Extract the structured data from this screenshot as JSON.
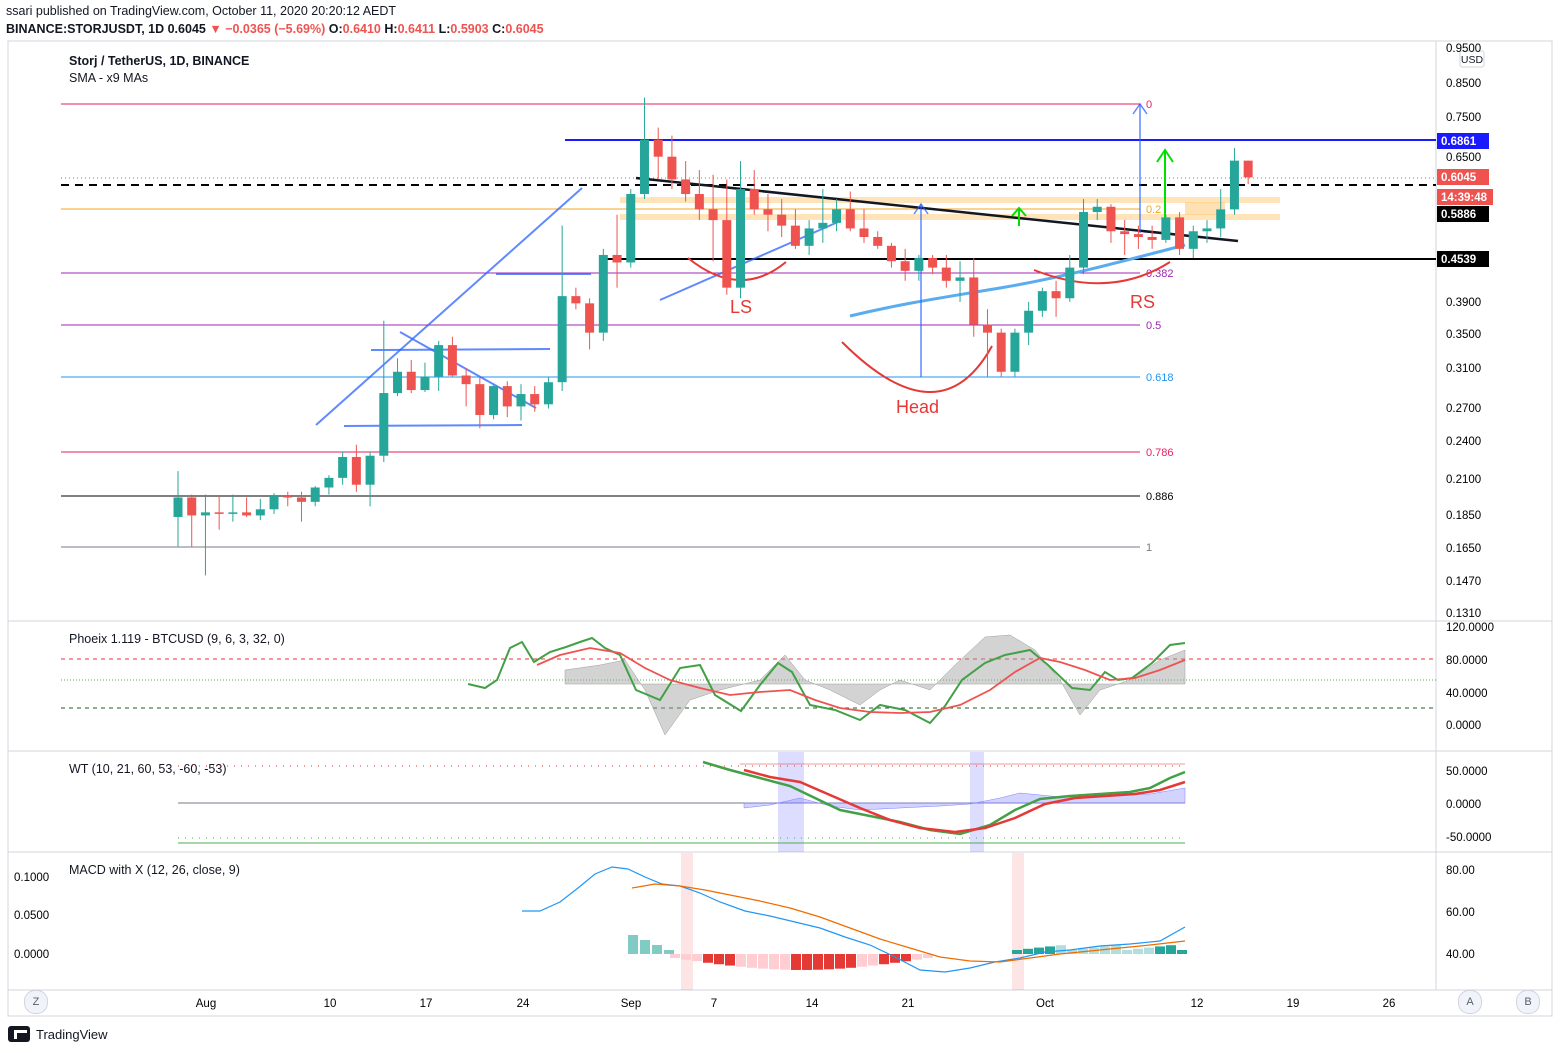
{
  "header": {
    "publisher": "ssari published on TradingView.com, October 11, 2020 20:20:12 AEDT",
    "symbol": "BINANCE:STORJUSDT, 1D",
    "last": "0.6045",
    "arrow": "▼",
    "change": "−0.0365 (−5.69%)",
    "o_label": "O:",
    "o": "0.6410",
    "h_label": "H:",
    "h": "0.6411",
    "l_label": "L:",
    "l": "0.5903",
    "c_label": "C:",
    "c": "0.6045"
  },
  "legend": {
    "main_title": "Storj / TetherUS, 1D, BINANCE",
    "main_sub": "SMA - x9 MAs",
    "pane2_title": "Phoeix 1.119 - BTCUSD (9, 6, 3, 32, 0)",
    "pane3_title": "WT (10, 21, 60, 53, -60, -53)",
    "pane4_title": "MACD with X (12, 26, close, 9)"
  },
  "price_scale": {
    "currency": "USD",
    "ticks": [
      "0.9500",
      "0.8500",
      "0.7500",
      "0.6500",
      "0.3900",
      "0.3500",
      "0.3100",
      "0.2700",
      "0.2400",
      "0.2100",
      "0.1850",
      "0.1650",
      "0.1470",
      "0.1310"
    ],
    "labels": [
      {
        "text": "0.6861",
        "bg": "#1a1aff",
        "color": "#ffffff"
      },
      {
        "text": "0.6045",
        "bg": "#ef5350",
        "color": "#ffffff"
      },
      {
        "text": "14:39:48",
        "bg": "#ef5350",
        "color": "#ffffff"
      },
      {
        "text": "0.5886",
        "bg": "#000000",
        "color": "#ffffff"
      },
      {
        "text": "0.4539",
        "bg": "#000000",
        "color": "#ffffff"
      }
    ]
  },
  "fib_levels": [
    {
      "ratio": "0",
      "color": "#e91e63"
    },
    {
      "ratio": "0.2",
      "color": "#f5a623"
    },
    {
      "ratio": "0.382",
      "color": "#9c27b0"
    },
    {
      "ratio": "0.5",
      "color": "#9c27b0"
    },
    {
      "ratio": "0.618",
      "color": "#2196f3"
    },
    {
      "ratio": "0.786",
      "color": "#e91e63"
    },
    {
      "ratio": "0.886",
      "color": "#000000"
    },
    {
      "ratio": "1",
      "color": "#787b86"
    }
  ],
  "annotations": [
    "LS",
    "Head",
    "RS"
  ],
  "pane2_scale": [
    "120.0000",
    "80.0000",
    "40.0000",
    "0.0000"
  ],
  "pane3_scale": [
    "50.0000",
    "0.0000",
    "-50.0000"
  ],
  "pane4_scale_left": [
    "0.1000",
    "0.0500",
    "0.0000"
  ],
  "pane4_scale_right": [
    "80.00",
    "60.00",
    "40.00"
  ],
  "time_axis": [
    "Aug",
    "10",
    "17",
    "24",
    "Sep",
    "7",
    "14",
    "21",
    "Oct",
    "12",
    "19",
    "26"
  ],
  "buttons": {
    "z": "Z",
    "a": "A",
    "b": "B"
  },
  "footer": {
    "brand": "TradingView"
  },
  "colors": {
    "up": "#26a69a",
    "down": "#ef5350"
  },
  "chart_data": {
    "type": "candlestick",
    "title": "Storj / TetherUS, 1D, BINANCE",
    "candles": [
      {
        "o": 0.183,
        "h": 0.215,
        "l": 0.165,
        "c": 0.196
      },
      {
        "o": 0.196,
        "h": 0.198,
        "l": 0.165,
        "c": 0.184
      },
      {
        "o": 0.184,
        "h": 0.198,
        "l": 0.149,
        "c": 0.186
      },
      {
        "o": 0.186,
        "h": 0.197,
        "l": 0.175,
        "c": 0.185
      },
      {
        "o": 0.185,
        "h": 0.198,
        "l": 0.18,
        "c": 0.186
      },
      {
        "o": 0.186,
        "h": 0.196,
        "l": 0.183,
        "c": 0.184
      },
      {
        "o": 0.184,
        "h": 0.195,
        "l": 0.181,
        "c": 0.188
      },
      {
        "o": 0.188,
        "h": 0.199,
        "l": 0.185,
        "c": 0.197
      },
      {
        "o": 0.197,
        "h": 0.2,
        "l": 0.19,
        "c": 0.196
      },
      {
        "o": 0.196,
        "h": 0.2,
        "l": 0.18,
        "c": 0.193
      },
      {
        "o": 0.193,
        "h": 0.204,
        "l": 0.19,
        "c": 0.203
      },
      {
        "o": 0.203,
        "h": 0.212,
        "l": 0.198,
        "c": 0.21
      },
      {
        "o": 0.21,
        "h": 0.23,
        "l": 0.205,
        "c": 0.226
      },
      {
        "o": 0.226,
        "h": 0.236,
        "l": 0.2,
        "c": 0.205
      },
      {
        "o": 0.205,
        "h": 0.23,
        "l": 0.19,
        "c": 0.227
      },
      {
        "o": 0.227,
        "h": 0.365,
        "l": 0.222,
        "c": 0.283
      },
      {
        "o": 0.283,
        "h": 0.32,
        "l": 0.28,
        "c": 0.305
      },
      {
        "o": 0.305,
        "h": 0.318,
        "l": 0.283,
        "c": 0.286
      },
      {
        "o": 0.286,
        "h": 0.315,
        "l": 0.284,
        "c": 0.3
      },
      {
        "o": 0.3,
        "h": 0.34,
        "l": 0.285,
        "c": 0.335
      },
      {
        "o": 0.335,
        "h": 0.345,
        "l": 0.3,
        "c": 0.301
      },
      {
        "o": 0.301,
        "h": 0.309,
        "l": 0.27,
        "c": 0.292
      },
      {
        "o": 0.292,
        "h": 0.3,
        "l": 0.25,
        "c": 0.262
      },
      {
        "o": 0.262,
        "h": 0.292,
        "l": 0.258,
        "c": 0.29
      },
      {
        "o": 0.29,
        "h": 0.295,
        "l": 0.26,
        "c": 0.27
      },
      {
        "o": 0.27,
        "h": 0.292,
        "l": 0.257,
        "c": 0.282
      },
      {
        "o": 0.282,
        "h": 0.29,
        "l": 0.265,
        "c": 0.272
      },
      {
        "o": 0.272,
        "h": 0.3,
        "l": 0.268,
        "c": 0.294
      },
      {
        "o": 0.294,
        "h": 0.51,
        "l": 0.285,
        "c": 0.398
      },
      {
        "o": 0.398,
        "h": 0.41,
        "l": 0.38,
        "c": 0.388
      },
      {
        "o": 0.388,
        "h": 0.395,
        "l": 0.33,
        "c": 0.35
      },
      {
        "o": 0.35,
        "h": 0.47,
        "l": 0.34,
        "c": 0.46
      },
      {
        "o": 0.46,
        "h": 0.53,
        "l": 0.41,
        "c": 0.448
      },
      {
        "o": 0.448,
        "h": 0.58,
        "l": 0.44,
        "c": 0.57
      },
      {
        "o": 0.57,
        "h": 0.8,
        "l": 0.56,
        "c": 0.69
      },
      {
        "o": 0.69,
        "h": 0.72,
        "l": 0.6,
        "c": 0.65
      },
      {
        "o": 0.65,
        "h": 0.7,
        "l": 0.58,
        "c": 0.6
      },
      {
        "o": 0.6,
        "h": 0.64,
        "l": 0.555,
        "c": 0.57
      },
      {
        "o": 0.57,
        "h": 0.62,
        "l": 0.52,
        "c": 0.54
      },
      {
        "o": 0.54,
        "h": 0.61,
        "l": 0.45,
        "c": 0.52
      },
      {
        "o": 0.52,
        "h": 0.6,
        "l": 0.4,
        "c": 0.41
      },
      {
        "o": 0.41,
        "h": 0.64,
        "l": 0.395,
        "c": 0.58
      },
      {
        "o": 0.58,
        "h": 0.62,
        "l": 0.53,
        "c": 0.54
      },
      {
        "o": 0.54,
        "h": 0.57,
        "l": 0.5,
        "c": 0.53
      },
      {
        "o": 0.53,
        "h": 0.56,
        "l": 0.49,
        "c": 0.51
      },
      {
        "o": 0.51,
        "h": 0.54,
        "l": 0.47,
        "c": 0.475
      },
      {
        "o": 0.475,
        "h": 0.52,
        "l": 0.46,
        "c": 0.505
      },
      {
        "o": 0.505,
        "h": 0.58,
        "l": 0.48,
        "c": 0.515
      },
      {
        "o": 0.515,
        "h": 0.56,
        "l": 0.5,
        "c": 0.54
      },
      {
        "o": 0.54,
        "h": 0.575,
        "l": 0.5,
        "c": 0.505
      },
      {
        "o": 0.505,
        "h": 0.54,
        "l": 0.48,
        "c": 0.49
      },
      {
        "o": 0.49,
        "h": 0.5,
        "l": 0.47,
        "c": 0.475
      },
      {
        "o": 0.475,
        "h": 0.48,
        "l": 0.44,
        "c": 0.45
      },
      {
        "o": 0.45,
        "h": 0.47,
        "l": 0.42,
        "c": 0.435
      },
      {
        "o": 0.435,
        "h": 0.46,
        "l": 0.42,
        "c": 0.455
      },
      {
        "o": 0.455,
        "h": 0.46,
        "l": 0.43,
        "c": 0.44
      },
      {
        "o": 0.44,
        "h": 0.46,
        "l": 0.41,
        "c": 0.42
      },
      {
        "o": 0.42,
        "h": 0.45,
        "l": 0.39,
        "c": 0.425
      },
      {
        "o": 0.425,
        "h": 0.455,
        "l": 0.345,
        "c": 0.36
      },
      {
        "o": 0.36,
        "h": 0.38,
        "l": 0.3,
        "c": 0.35
      },
      {
        "o": 0.35,
        "h": 0.355,
        "l": 0.3,
        "c": 0.305
      },
      {
        "o": 0.305,
        "h": 0.355,
        "l": 0.3,
        "c": 0.35
      },
      {
        "o": 0.35,
        "h": 0.39,
        "l": 0.335,
        "c": 0.378
      },
      {
        "o": 0.378,
        "h": 0.41,
        "l": 0.37,
        "c": 0.405
      },
      {
        "o": 0.405,
        "h": 0.42,
        "l": 0.37,
        "c": 0.395
      },
      {
        "o": 0.395,
        "h": 0.46,
        "l": 0.39,
        "c": 0.44
      },
      {
        "o": 0.44,
        "h": 0.56,
        "l": 0.43,
        "c": 0.535
      },
      {
        "o": 0.535,
        "h": 0.56,
        "l": 0.52,
        "c": 0.545
      },
      {
        "o": 0.545,
        "h": 0.55,
        "l": 0.48,
        "c": 0.5
      },
      {
        "o": 0.5,
        "h": 0.52,
        "l": 0.46,
        "c": 0.495
      },
      {
        "o": 0.495,
        "h": 0.51,
        "l": 0.47,
        "c": 0.49
      },
      {
        "o": 0.49,
        "h": 0.51,
        "l": 0.47,
        "c": 0.485
      },
      {
        "o": 0.485,
        "h": 0.53,
        "l": 0.48,
        "c": 0.525
      },
      {
        "o": 0.525,
        "h": 0.535,
        "l": 0.46,
        "c": 0.47
      },
      {
        "o": 0.47,
        "h": 0.51,
        "l": 0.455,
        "c": 0.5
      },
      {
        "o": 0.5,
        "h": 0.52,
        "l": 0.48,
        "c": 0.505
      },
      {
        "o": 0.505,
        "h": 0.58,
        "l": 0.49,
        "c": 0.54
      },
      {
        "o": 0.54,
        "h": 0.67,
        "l": 0.53,
        "c": 0.641
      },
      {
        "o": 0.641,
        "h": 0.641,
        "l": 0.59,
        "c": 0.6045
      }
    ],
    "horizontal_levels": [
      {
        "price": 0.6861,
        "style": "solid",
        "color": "#1a1aff"
      },
      {
        "price": 0.5886,
        "style": "dashed",
        "color": "#000000"
      },
      {
        "price": 0.4539,
        "style": "solid",
        "color": "#000000"
      }
    ],
    "indicators": [
      "Phoeix 1.119 - BTCUSD",
      "WT",
      "MACD with X"
    ]
  }
}
